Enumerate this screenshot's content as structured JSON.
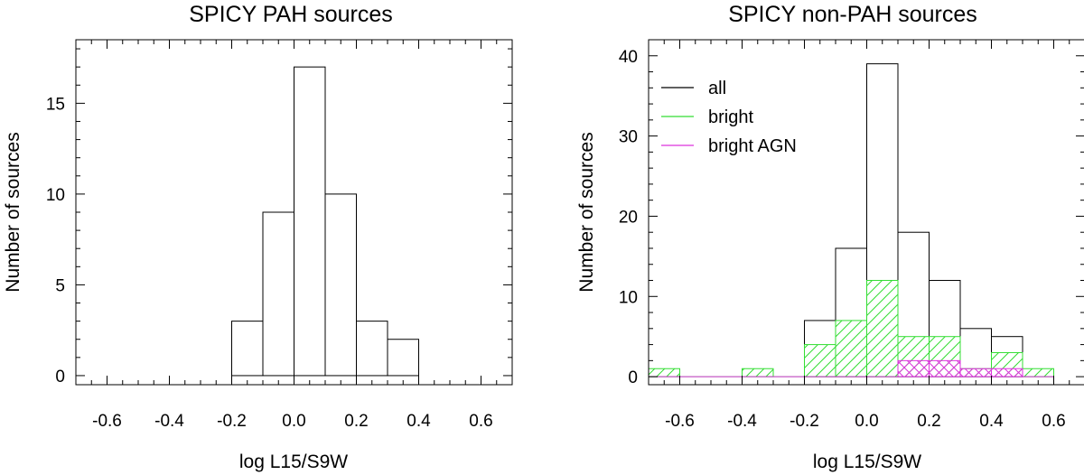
{
  "chart_data": [
    {
      "type": "histogram",
      "title": "SPICY PAH sources",
      "xlabel": "log L15/S9W",
      "ylabel": "Number of sources",
      "xlim": [
        -0.7,
        0.7
      ],
      "ylim": [
        -0.5,
        18.5
      ],
      "xticks": [
        -0.6,
        -0.4,
        -0.2,
        0.0,
        0.2,
        0.4,
        0.6
      ],
      "yticks": [
        0,
        5,
        10,
        15
      ],
      "bin_edges": [
        -0.2,
        -0.1,
        0.0,
        0.1,
        0.2,
        0.3,
        0.4
      ],
      "series": [
        {
          "name": "all",
          "color": "#000000",
          "counts": [
            3,
            9,
            17,
            10,
            3,
            2
          ]
        }
      ],
      "legend": null
    },
    {
      "type": "histogram",
      "title": "SPICY non-PAH sources",
      "xlabel": "log L15/S9W",
      "ylabel": "Number of sources",
      "xlim": [
        -0.7,
        0.7
      ],
      "ylim": [
        -1,
        42
      ],
      "xticks": [
        -0.6,
        -0.4,
        -0.2,
        0.0,
        0.2,
        0.4,
        0.6
      ],
      "yticks": [
        0,
        10,
        20,
        30,
        40
      ],
      "bin_edges": [
        -0.7,
        -0.6,
        -0.5,
        -0.4,
        -0.3,
        -0.2,
        -0.1,
        0.0,
        0.1,
        0.2,
        0.3,
        0.4,
        0.5,
        0.6
      ],
      "series": [
        {
          "name": "all",
          "color": "#000000",
          "hatch": "none",
          "counts": [
            0,
            0,
            0,
            0,
            0,
            7,
            16,
            39,
            18,
            12,
            6,
            5,
            0
          ]
        },
        {
          "name": "bright",
          "color": "#33dd33",
          "hatch": "diagonal",
          "counts": [
            1,
            0,
            0,
            1,
            0,
            4,
            7,
            12,
            5,
            5,
            1,
            3,
            1
          ]
        },
        {
          "name": "bright AGN",
          "color": "#dd33dd",
          "hatch": "cross",
          "counts": [
            0,
            0,
            0,
            0,
            0,
            0,
            0,
            0,
            2,
            2,
            1,
            1,
            0
          ]
        }
      ],
      "legend": "top-left"
    }
  ]
}
